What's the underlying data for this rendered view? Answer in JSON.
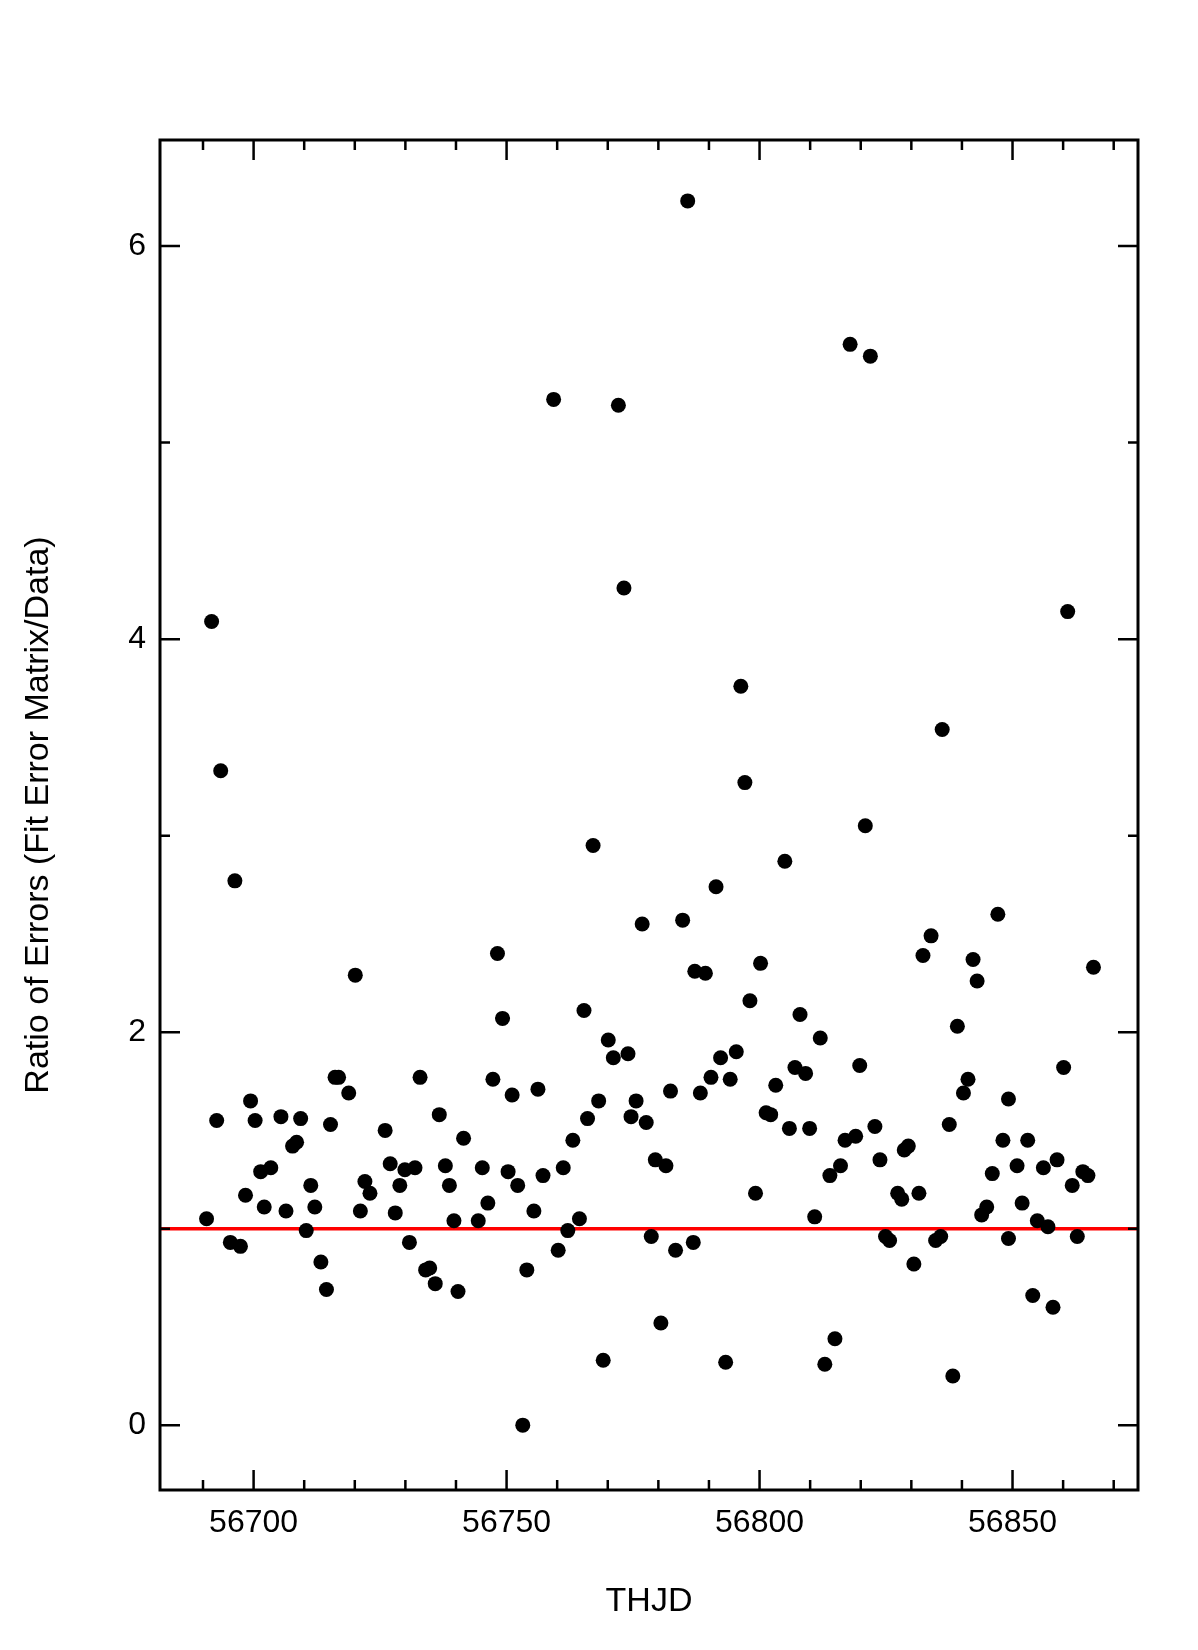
{
  "chart_data": {
    "type": "scatter",
    "xlabel": "THJD",
    "ylabel": "Ratio of Errors (Fit Error Matrix/Data)",
    "color": "#000000",
    "marker": "circle",
    "grid": false,
    "legend": false,
    "xlim": [
      56681.5,
      56874.8
    ],
    "ylim": [
      -0.33,
      6.54
    ],
    "xticks": [
      {
        "value": 56690,
        "label": null
      },
      56700,
      {
        "value": 56710,
        "label": null
      },
      {
        "value": 56720,
        "label": null
      },
      {
        "value": 56730,
        "label": null
      },
      {
        "value": 56740,
        "label": null
      },
      56750,
      {
        "value": 56760,
        "label": null
      },
      {
        "value": 56770,
        "label": null
      },
      {
        "value": 56780,
        "label": null
      },
      {
        "value": 56790,
        "label": null
      },
      56800,
      {
        "value": 56810,
        "label": null
      },
      {
        "value": 56820,
        "label": null
      },
      {
        "value": 56830,
        "label": null
      },
      {
        "value": 56840,
        "label": null
      },
      56850,
      {
        "value": 56860,
        "label": null
      },
      {
        "value": 56870,
        "label": null
      }
    ],
    "yticks": [
      0,
      {
        "value": 1,
        "label": null
      },
      2,
      {
        "value": 3,
        "label": null
      },
      4,
      {
        "value": 5,
        "label": null
      },
      6
    ],
    "ref_lines": [
      {
        "axis": "y",
        "value": 1,
        "color": "#ff0000"
      }
    ],
    "x": [
      56690.7,
      56691.7,
      56692.7,
      56693.5,
      56695.4,
      56697.4,
      56696.3,
      56698.4,
      56699.4,
      56700.3,
      56701.4,
      56702.1,
      56703.4,
      56706.4,
      56705.4,
      56707.7,
      56708.5,
      56709.3,
      56710.4,
      56711.3,
      56712.1,
      56713.3,
      56714.4,
      56715.2,
      56716.8,
      56716.1,
      56718.8,
      56720.1,
      56721.1,
      56722.0,
      56723.0,
      56726.0,
      56728.0,
      56727.0,
      56729.9,
      56728.9,
      56731.9,
      56730.8,
      56732.9,
      56734.0,
      56734.8,
      56735.9,
      56736.7,
      56737.9,
      56738.7,
      56739.6,
      56740.4,
      56741.5,
      56744.4,
      56745.2,
      56746.3,
      56747.3,
      56748.2,
      56749.2,
      56750.3,
      56751.1,
      56753.2,
      56752.2,
      56754.0,
      56755.4,
      56757.2,
      56756.2,
      56759.3,
      56760.2,
      56761.2,
      56762.1,
      56763.1,
      56764.4,
      56765.3,
      56766.0,
      56767.1,
      56768.2,
      56769.1,
      56770.1,
      56771.1,
      56772.1,
      56773.2,
      56774.0,
      56774.6,
      56775.6,
      56776.8,
      56777.6,
      56778.6,
      56779.4,
      56780.5,
      56781.5,
      56782.4,
      56783.4,
      56784.8,
      56786.9,
      56785.8,
      56787.2,
      56789.3,
      56788.3,
      56790.4,
      56791.4,
      56792.3,
      56793.3,
      56794.2,
      56795.4,
      56796.3,
      56797.1,
      56798.1,
      56799.2,
      56800.2,
      56801.3,
      56802.2,
      56803.2,
      56805.0,
      56805.9,
      56807.0,
      56808.0,
      56809.1,
      56809.9,
      56810.9,
      56812.0,
      56812.9,
      56813.9,
      56814.9,
      56816.0,
      56816.9,
      56819.0,
      56819.8,
      56820.9,
      56822.8,
      56821.9,
      56817.9,
      56823.8,
      56824.9,
      56825.7,
      56827.3,
      56828.1,
      56828.6,
      56829.4,
      56830.5,
      56831.5,
      56832.3,
      56833.9,
      56834.8,
      56835.8,
      56836.1,
      56838.2,
      56837.5,
      56839.1,
      56840.3,
      56841.2,
      56842.2,
      56843.0,
      56843.9,
      56844.9,
      56846.0,
      56847.1,
      56848.1,
      56849.2,
      56849.2,
      56850.9,
      56851.9,
      56853.0,
      56854.0,
      56854.9,
      56856.1,
      56857.0,
      56858.0,
      56858.8,
      56860.1,
      56860.9,
      56861.8,
      56862.8,
      56863.9,
      56864.9,
      56866.0
    ],
    "values": [
      1.05,
      4.09,
      1.55,
      3.33,
      0.93,
      0.91,
      2.77,
      1.17,
      1.65,
      1.55,
      1.29,
      1.11,
      1.31,
      1.09,
      1.57,
      1.42,
      1.44,
      1.56,
      0.99,
      1.22,
      1.11,
      0.83,
      0.69,
      1.53,
      1.77,
      1.77,
      1.69,
      2.29,
      1.09,
      1.24,
      1.18,
      1.5,
      1.08,
      1.33,
      1.3,
      1.22,
      1.31,
      0.93,
      1.77,
      0.79,
      0.8,
      0.72,
      1.58,
      1.32,
      1.22,
      1.04,
      0.68,
      1.46,
      1.04,
      1.31,
      1.13,
      1.76,
      2.4,
      2.07,
      1.29,
      1.68,
      0.0,
      1.22,
      0.79,
      1.09,
      1.27,
      1.71,
      5.22,
      0.89,
      1.31,
      0.99,
      1.45,
      1.05,
      2.11,
      1.56,
      2.95,
      1.65,
      0.33,
      1.96,
      1.87,
      5.19,
      4.26,
      1.89,
      1.57,
      1.65,
      2.55,
      1.54,
      0.96,
      1.35,
      0.52,
      1.32,
      1.7,
      0.89,
      2.57,
      0.93,
      6.23,
      2.31,
      2.3,
      1.69,
      1.77,
      2.74,
      1.87,
      0.32,
      1.76,
      1.9,
      3.76,
      3.27,
      2.16,
      1.18,
      2.35,
      1.59,
      1.58,
      1.73,
      2.87,
      1.51,
      1.82,
      2.09,
      1.79,
      1.51,
      1.06,
      1.97,
      0.31,
      1.27,
      0.44,
      1.32,
      1.45,
      1.47,
      1.83,
      3.05,
      1.52,
      5.44,
      5.5,
      1.35,
      0.96,
      0.94,
      1.18,
      1.15,
      1.4,
      1.42,
      0.82,
      1.18,
      2.39,
      2.49,
      0.94,
      0.96,
      3.54,
      0.25,
      1.53,
      2.03,
      1.69,
      1.76,
      2.37,
      2.26,
      1.07,
      1.11,
      1.28,
      2.6,
      1.45,
      1.66,
      0.95,
      1.32,
      1.13,
      1.45,
      0.66,
      1.04,
      1.31,
      1.01,
      0.6,
      1.35,
      1.82,
      4.14,
      1.22,
      0.96,
      1.29,
      1.27,
      2.33
    ]
  }
}
